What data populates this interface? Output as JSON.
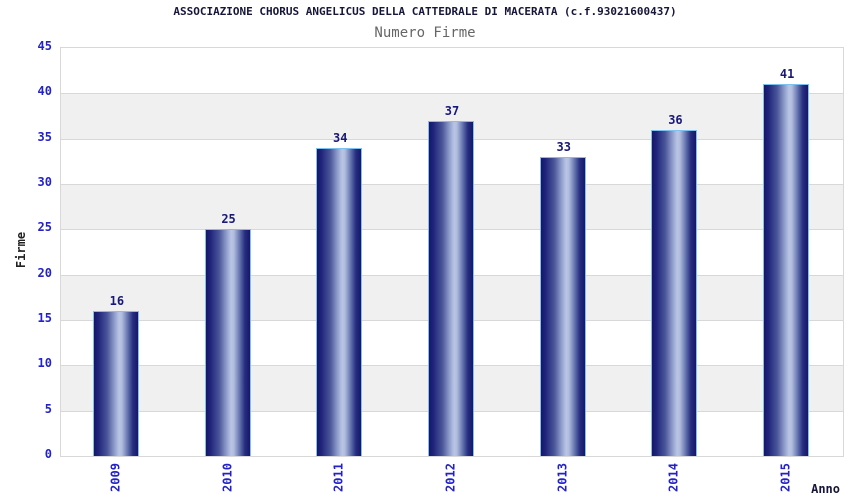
{
  "chart_data": {
    "type": "bar",
    "title": "ASSOCIAZIONE CHORUS ANGELICUS DELLA CATTEDRALE DI MACERATA (c.f.93021600437)",
    "subtitle": "Numero Firme",
    "xlabel": "Anno",
    "ylabel": "Firme",
    "categories": [
      "2009",
      "2010",
      "2011",
      "2012",
      "2013",
      "2014",
      "2015"
    ],
    "values": [
      16,
      25,
      34,
      37,
      33,
      36,
      41
    ],
    "ylim": [
      0,
      45
    ],
    "ytick_step": 5,
    "yticks": [
      0,
      5,
      10,
      15,
      20,
      25,
      30,
      35,
      40,
      45
    ],
    "grid": "alternating-horizontal-bands",
    "legend": "none",
    "colors": {
      "background": "#ffffff",
      "title_color": "#16163a",
      "subtitle_color": "#666666",
      "axis_label_blue": "#2222cc",
      "value_label": "#181878",
      "bar_dark": "#16166b",
      "bar_light": "#bac5e5",
      "bar_outline": "#7ec0f0",
      "band_gray": "#f0f0f0",
      "band_white": "#ffffff",
      "gridline": "#d8d8d8"
    }
  }
}
